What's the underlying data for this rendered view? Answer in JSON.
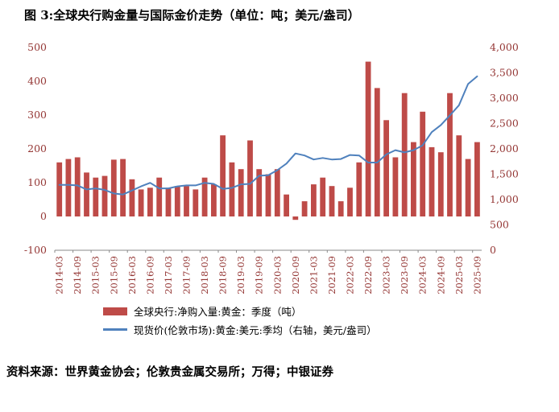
{
  "title": "图 3:全球央行购金量与国际金价走势（单位：吨；美元/盎司）",
  "source": "资料来源：世界黄金协会；伦敦贵金属交易所；万得；中银证券",
  "legend": {
    "bars": "全球央行:净购入量:黄金：季度（吨）",
    "line": "现货价(伦敦市场):黄金:美元:季均（右轴，美元/盎司）"
  },
  "colors": {
    "bar": "#BE4B48",
    "line": "#4F81BD",
    "axis_text": "#943634",
    "axis_line": "#8a8a8a"
  },
  "chart_data": {
    "type": "bar",
    "title": "图 3:全球央行购金量与国际金价走势（单位：吨；美元/盎司）",
    "x": [
      "2014-03",
      "2014-06",
      "2014-09",
      "2014-12",
      "2015-03",
      "2015-06",
      "2015-09",
      "2015-12",
      "2016-03",
      "2016-06",
      "2016-09",
      "2016-12",
      "2017-03",
      "2017-06",
      "2017-09",
      "2017-12",
      "2018-03",
      "2018-06",
      "2018-09",
      "2018-12",
      "2019-03",
      "2019-06",
      "2019-09",
      "2019-12",
      "2020-03",
      "2020-06",
      "2020-09",
      "2020-12",
      "2021-03",
      "2021-06",
      "2021-09",
      "2021-12",
      "2022-03",
      "2022-06",
      "2022-09",
      "2022-12",
      "2023-03",
      "2023-06",
      "2023-09",
      "2023-12",
      "2024-03",
      "2024-06",
      "2024-09",
      "2024-12",
      "2025-03",
      "2025-06",
      "2025-09"
    ],
    "series": [
      {
        "name": "全球央行:净购入量:黄金：季度（吨）",
        "type": "bar",
        "axis": "left",
        "values": [
          160,
          170,
          175,
          130,
          115,
          120,
          168,
          170,
          110,
          80,
          85,
          115,
          85,
          90,
          90,
          80,
          115,
          95,
          240,
          160,
          140,
          225,
          140,
          125,
          140,
          65,
          -10,
          45,
          95,
          115,
          90,
          45,
          85,
          160,
          458,
          380,
          285,
          175,
          365,
          220,
          310,
          205,
          190,
          365,
          240,
          170,
          220
        ]
      },
      {
        "name": "现货价(伦敦市场):黄金:美元:季均（右轴，美元/盎司）",
        "type": "line",
        "axis": "right",
        "values": [
          1290,
          1290,
          1280,
          1200,
          1220,
          1190,
          1120,
          1100,
          1180,
          1260,
          1330,
          1220,
          1220,
          1260,
          1280,
          1280,
          1330,
          1310,
          1210,
          1230,
          1300,
          1310,
          1470,
          1480,
          1580,
          1710,
          1910,
          1870,
          1790,
          1820,
          1790,
          1800,
          1880,
          1870,
          1730,
          1730,
          1890,
          1975,
          1930,
          1975,
          2070,
          2330,
          2470,
          2660,
          2860,
          3280,
          3430
        ]
      }
    ],
    "left_axis": {
      "min": -100,
      "max": 500,
      "step": 100
    },
    "right_axis": {
      "min": 0,
      "max": 4000,
      "step": 500
    },
    "tick_every": 2,
    "grid": false,
    "legend_position": "bottom"
  }
}
